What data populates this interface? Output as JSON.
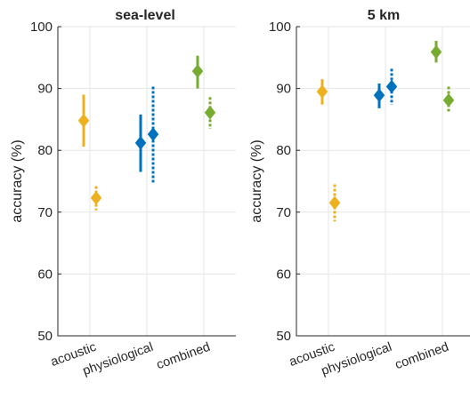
{
  "chart_data": [
    {
      "type": "scatter",
      "subtype": "errorbar",
      "title": "sea-level",
      "ylabel": "accuracy (%)",
      "xlabel": "",
      "ylim": [
        50,
        100
      ],
      "yticks": [
        50,
        60,
        70,
        80,
        90,
        100
      ],
      "categories": [
        "acoustic",
        "physiological",
        "combined"
      ],
      "grid": true,
      "legend": "none",
      "series": [
        {
          "style": "solid",
          "points": [
            {
              "category": "acoustic",
              "color": "#EDB120",
              "y": 84.8,
              "low": 80.6,
              "high": 89.0
            },
            {
              "category": "physiological",
              "color": "#0072BD",
              "y": 81.2,
              "low": 76.5,
              "high": 85.8
            },
            {
              "category": "combined",
              "color": "#77AC30",
              "y": 92.8,
              "low": 90.0,
              "high": 95.3
            }
          ]
        },
        {
          "style": "dotted",
          "points": [
            {
              "category": "acoustic",
              "color": "#EDB120",
              "y": 72.3,
              "low": 70.3,
              "high": 74.2
            },
            {
              "category": "physiological",
              "color": "#0072BD",
              "y": 82.6,
              "low": 74.8,
              "high": 90.3
            },
            {
              "category": "combined",
              "color": "#77AC30",
              "y": 86.1,
              "low": 83.5,
              "high": 88.6
            }
          ]
        }
      ]
    },
    {
      "type": "scatter",
      "subtype": "errorbar",
      "title": "5 km",
      "ylabel": "accuracy (%)",
      "xlabel": "",
      "ylim": [
        50,
        100
      ],
      "yticks": [
        50,
        60,
        70,
        80,
        90,
        100
      ],
      "categories": [
        "acoustic",
        "physiological",
        "combined"
      ],
      "grid": true,
      "legend": "none",
      "series": [
        {
          "style": "solid",
          "points": [
            {
              "category": "acoustic",
              "color": "#EDB120",
              "y": 89.5,
              "low": 87.4,
              "high": 91.5
            },
            {
              "category": "physiological",
              "color": "#0072BD",
              "y": 88.9,
              "low": 86.8,
              "high": 90.8
            },
            {
              "category": "combined",
              "color": "#77AC30",
              "y": 95.9,
              "low": 94.2,
              "high": 97.7
            }
          ]
        },
        {
          "style": "dotted",
          "points": [
            {
              "category": "acoustic",
              "color": "#EDB120",
              "y": 71.5,
              "low": 68.5,
              "high": 74.5
            },
            {
              "category": "physiological",
              "color": "#0072BD",
              "y": 90.3,
              "low": 87.4,
              "high": 93.2
            },
            {
              "category": "combined",
              "color": "#77AC30",
              "y": 88.1,
              "low": 86.0,
              "high": 90.3
            }
          ]
        }
      ]
    }
  ]
}
